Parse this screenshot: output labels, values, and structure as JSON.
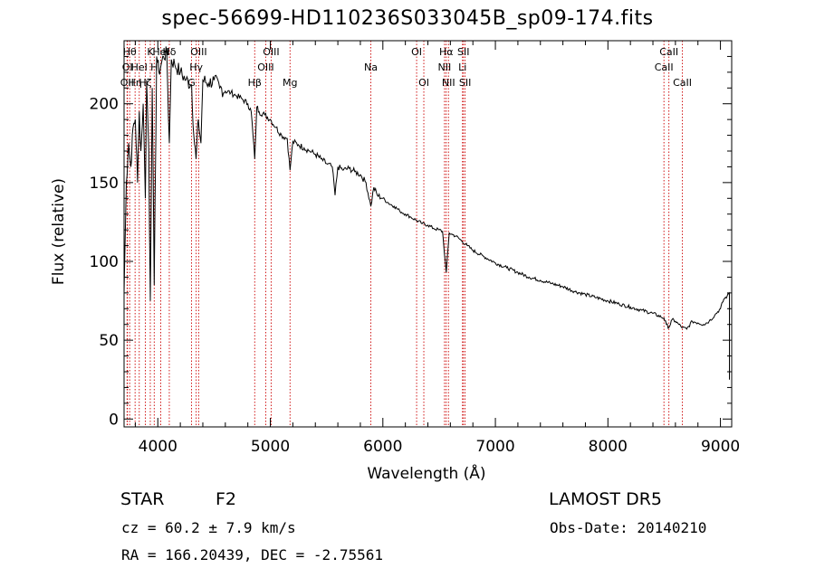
{
  "chart_data": {
    "type": "line",
    "title": "spec-56699-HD110236S033045B_sp09-174.fits",
    "xlabel": "Wavelength (Å)",
    "ylabel": "Flux (relative)",
    "xlim": [
      3700,
      9100
    ],
    "ylim": [
      -5,
      240
    ],
    "xticks": [
      4000,
      5000,
      6000,
      7000,
      8000,
      9000
    ],
    "yticks": [
      0,
      50,
      100,
      150,
      200
    ],
    "line_color": "#000000",
    "marker_color": "#cc0000",
    "series": [
      {
        "x": [
          3700,
          3720,
          3740,
          3760,
          3780,
          3800,
          3820,
          3835,
          3850,
          3870,
          3889,
          3900,
          3920,
          3933,
          3950,
          3968,
          3990,
          4010,
          4030,
          4050,
          4080,
          4102,
          4120,
          4150,
          4200,
          4250,
          4300,
          4320,
          4340,
          4360,
          4383,
          4400,
          4450,
          4500,
          4550,
          4600,
          4650,
          4700,
          4750,
          4800,
          4830,
          4861,
          4880,
          4900,
          4950,
          5000,
          5050,
          5100,
          5150,
          5175,
          5200,
          5250,
          5300,
          5350,
          5400,
          5450,
          5500,
          5550,
          5575,
          5600,
          5650,
          5700,
          5750,
          5800,
          5850,
          5893,
          5920,
          5950,
          6000,
          6050,
          6100,
          6150,
          6200,
          6250,
          6300,
          6350,
          6400,
          6450,
          6500,
          6530,
          6563,
          6590,
          6620,
          6650,
          6700,
          6750,
          6800,
          6900,
          7000,
          7100,
          7200,
          7300,
          7400,
          7500,
          7600,
          7700,
          7800,
          7900,
          8000,
          8100,
          8200,
          8300,
          8400,
          8498,
          8520,
          8542,
          8570,
          8600,
          8630,
          8662,
          8700,
          8750,
          8800,
          8850,
          8900,
          8950,
          9000,
          9030,
          9060,
          9080
        ],
        "y": [
          80,
          150,
          175,
          160,
          185,
          190,
          150,
          195,
          170,
          200,
          140,
          215,
          170,
          75,
          210,
          85,
          230,
          220,
          225,
          230,
          232,
          175,
          228,
          225,
          220,
          215,
          212,
          180,
          165,
          190,
          175,
          215,
          213,
          215,
          210,
          208,
          207,
          205,
          203,
          200,
          195,
          165,
          198,
          195,
          193,
          190,
          185,
          180,
          178,
          158,
          176,
          174,
          172,
          170,
          168,
          165,
          162,
          160,
          142,
          160,
          158,
          159,
          157,
          155,
          150,
          135,
          147,
          142,
          140,
          137,
          135,
          132,
          130,
          128,
          126,
          124,
          123,
          121,
          120,
          119,
          93,
          118,
          117,
          116,
          113,
          110,
          107,
          103,
          99,
          96,
          93,
          90,
          88,
          86,
          84,
          81,
          79,
          77,
          75,
          73,
          71,
          69,
          67,
          64,
          60,
          58,
          63,
          62,
          60,
          58,
          57,
          62,
          61,
          60,
          62,
          66,
          70,
          76,
          78,
          80
        ]
      }
    ],
    "line_markers": [
      {
        "wl": 3727,
        "label": "OII",
        "row": 2
      },
      {
        "wl": 3730,
        "label": "OI",
        "row": 1
      },
      {
        "wl": 3750,
        "label": "Hθ",
        "row": 0
      },
      {
        "wl": 3798,
        "label": "Hη",
        "row": 2
      },
      {
        "wl": 3835,
        "label": "HeI",
        "row": 1
      },
      {
        "wl": 3889,
        "label": "Hζ",
        "row": 2
      },
      {
        "wl": 3933,
        "label": "K",
        "row": 0
      },
      {
        "wl": 3968,
        "label": "H",
        "row": 1
      },
      {
        "wl": 4026,
        "label": "HeI",
        "row": 0
      },
      {
        "wl": 4102,
        "label": "Hδ",
        "row": 0
      },
      {
        "wl": 4300,
        "label": "G",
        "row": 2
      },
      {
        "wl": 4341,
        "label": "Hγ",
        "row": 1
      },
      {
        "wl": 4363,
        "label": "OIII",
        "row": 0
      },
      {
        "wl": 4861,
        "label": "Hβ",
        "row": 2
      },
      {
        "wl": 4959,
        "label": "OIII",
        "row": 1
      },
      {
        "wl": 5007,
        "label": "OIII",
        "row": 0
      },
      {
        "wl": 5175,
        "label": "Mg",
        "row": 2
      },
      {
        "wl": 5893,
        "label": "Na",
        "row": 1
      },
      {
        "wl": 6300,
        "label": "OI",
        "row": 0
      },
      {
        "wl": 6364,
        "label": "OI",
        "row": 2
      },
      {
        "wl": 6548,
        "label": "NII",
        "row": 1
      },
      {
        "wl": 6563,
        "label": "Hα",
        "row": 0
      },
      {
        "wl": 6583,
        "label": "NII",
        "row": 2
      },
      {
        "wl": 6708,
        "label": "Li",
        "row": 1
      },
      {
        "wl": 6716,
        "label": "SII",
        "row": 0
      },
      {
        "wl": 6731,
        "label": "SII",
        "row": 2
      },
      {
        "wl": 8498,
        "label": "CaII",
        "row": 1
      },
      {
        "wl": 8542,
        "label": "CaII",
        "row": 0
      },
      {
        "wl": 8662,
        "label": "CaII",
        "row": 2
      }
    ]
  },
  "info": {
    "object_class": "STAR",
    "subclass": "F2",
    "survey": "LAMOST  DR5",
    "redshift_line": "cz = 60.2 ± 7.9 km/s",
    "obs_date": "Obs-Date: 20140210",
    "coords": "RA = 166.20439, DEC =  -2.75561"
  }
}
